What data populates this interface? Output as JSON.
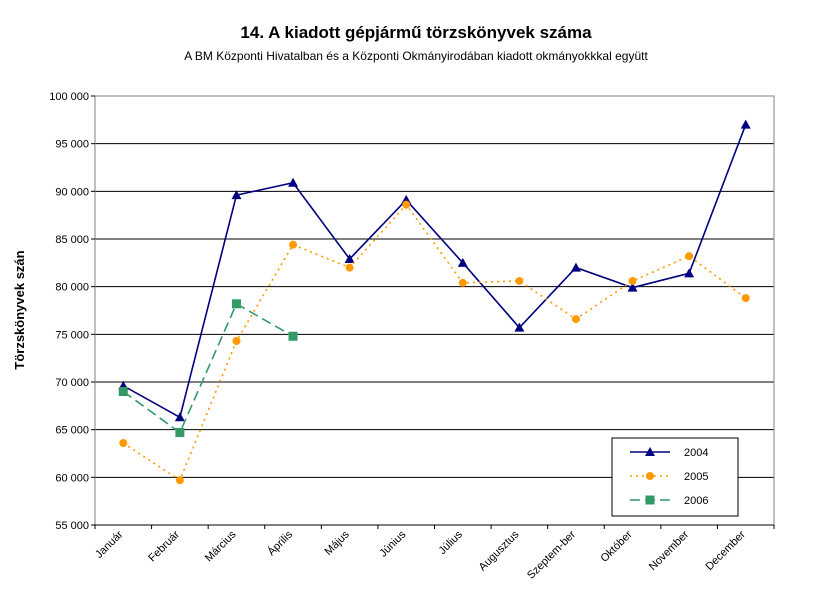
{
  "chart_data": {
    "type": "line",
    "title": "14. A  kiadott gépjármű  törzskönyvek száma",
    "subtitle": "A BM Központi Hivatalban és a Központi Okmányirodában kiadott okmányokkkal együtt",
    "ylabel": "Törzskönyvek szán",
    "xlabel": "",
    "ylim": [
      55000,
      100000
    ],
    "ytick_step": 5000,
    "yticks": [
      "55 000",
      "60 000",
      "65 000",
      "70 000",
      "75 000",
      "80 000",
      "85 000",
      "90 000",
      "95 000",
      "100 000"
    ],
    "categories": [
      "Január",
      "Február",
      "Március",
      "Április",
      "Május",
      "Június",
      "Július",
      "Augusztus",
      "Szeptem-ber",
      "Október",
      "November",
      "December"
    ],
    "grid": true,
    "legend_position": "bottom-right",
    "series": [
      {
        "name": "2004",
        "color": "#000080",
        "marker": "triangle",
        "dash": "solid",
        "values": [
          69600,
          66300,
          89600,
          90900,
          82900,
          89100,
          82500,
          75700,
          82000,
          79900,
          81400,
          97000
        ]
      },
      {
        "name": "2005",
        "color": "#FF9900",
        "marker": "circle",
        "dash": "dotted",
        "values": [
          63600,
          59700,
          74300,
          84400,
          82000,
          88600,
          80400,
          80600,
          76600,
          80600,
          83200,
          78800
        ]
      },
      {
        "name": "2006",
        "color": "#339966",
        "marker": "square",
        "dash": "dashed",
        "values": [
          69000,
          64700,
          78200,
          74800,
          null,
          null,
          null,
          null,
          null,
          null,
          null,
          null
        ]
      }
    ]
  }
}
